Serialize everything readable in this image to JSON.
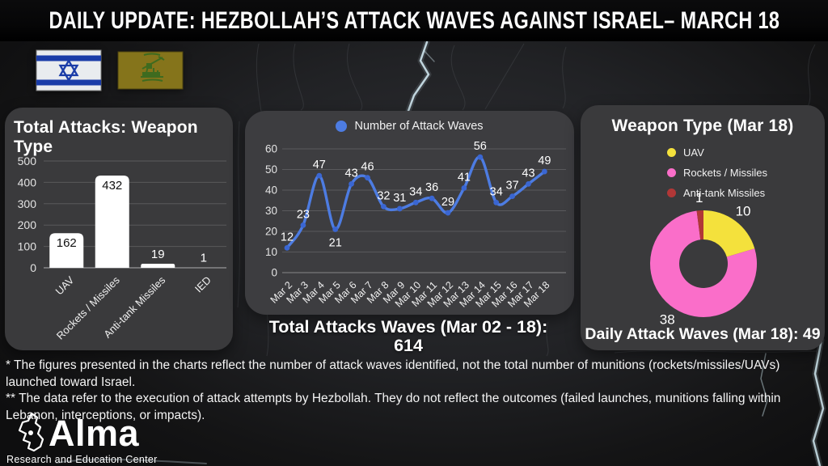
{
  "header": {
    "title": "DAILY UPDATE: HEZBOLLAH’S ATTACK WAVES AGAINST ISRAEL– MARCH 18"
  },
  "footnotes": {
    "note1": "* The figures presented in the charts reflect the number of attack waves identified, not the total number of munitions (rockets/missiles/UAVs) launched toward Israel.",
    "note2": "** The data refer to the execution of attack attempts by Hezbollah. They do not reflect the outcomes (failed launches, munitions falling within Lebanon, interceptions, or impacts)."
  },
  "logo": {
    "name": "Alma",
    "subtitle": "Research and Education Center"
  },
  "chart_data": [
    {
      "type": "bar",
      "title": "Total Attacks: Weapon Type",
      "categories": [
        "UAV",
        "Rockets / Missiles",
        "Anti-tank Missiles",
        "IED"
      ],
      "values": [
        162,
        432,
        19,
        1
      ],
      "ylim": [
        0,
        500
      ],
      "yticks": [
        0,
        100,
        200,
        300,
        400,
        500
      ],
      "bar_color": "#ffffff",
      "label_color_inside": "#111111",
      "label_color_outside": "#ffffff",
      "grid": true,
      "legend_position": "none"
    },
    {
      "type": "line",
      "legend": "Number of Attack Waves",
      "categories": [
        "Mar 2",
        "Mar 3",
        "Mar 4",
        "Mar 5",
        "Mar 6",
        "Mar 7",
        "Mar 8",
        "Mar 9",
        "Mar 10",
        "Mar 11",
        "Mar 12",
        "Mar 13",
        "Mar 14",
        "Mar 15",
        "Mar 16",
        "Mar 17",
        "Mar 18"
      ],
      "values": [
        12,
        23,
        47,
        21,
        43,
        46,
        32,
        31,
        34,
        36,
        29,
        41,
        56,
        34,
        37,
        43,
        49
      ],
      "ylim": [
        0,
        60
      ],
      "yticks": [
        0,
        10,
        20,
        30,
        40,
        50,
        60
      ],
      "line_color": "#4d7ce2",
      "point_color": "#3a66d2",
      "grid": true,
      "legend_position": "top",
      "caption_title": "Total Attacks Waves (Mar 02 - 18):",
      "caption_value": "614"
    },
    {
      "type": "donut",
      "title": "Weapon Type (Mar 18)",
      "labels": [
        "UAV",
        "Rockets / Missiles",
        "Anti-tank Missiles"
      ],
      "values": [
        10,
        38,
        1
      ],
      "colors": [
        "#f4e13c",
        "#fa6ec9",
        "#b13737"
      ],
      "legend_position": "top",
      "caption": "Daily Attack Waves (Mar 18): 49"
    }
  ]
}
